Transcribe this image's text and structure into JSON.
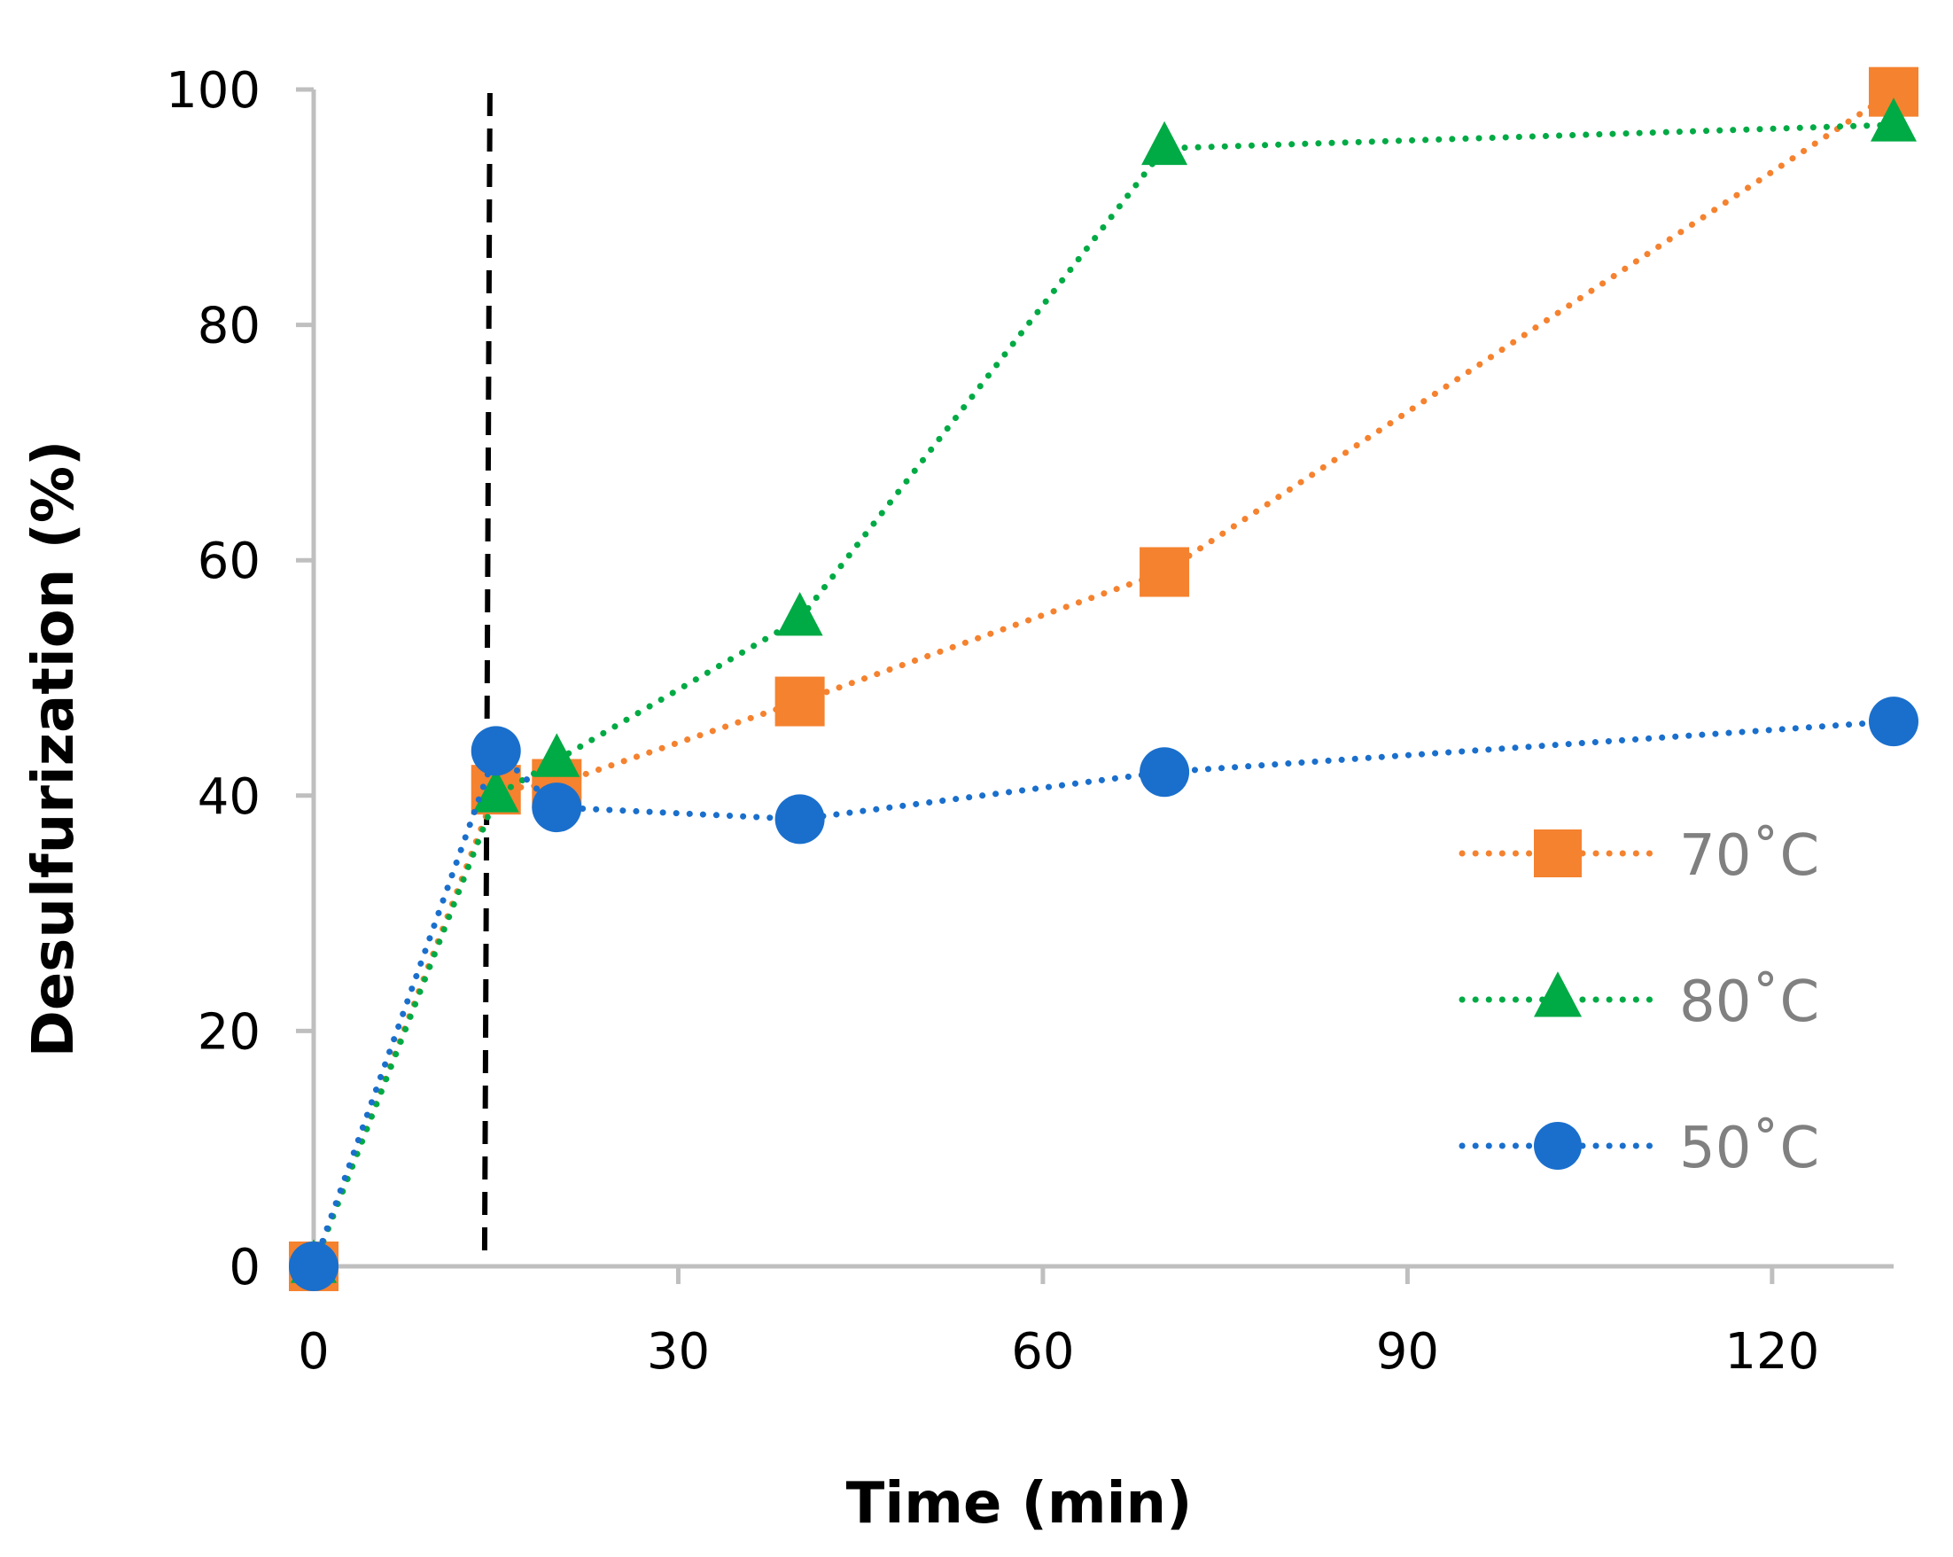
{
  "chart_data": {
    "type": "line",
    "xlabel": "Time (min)",
    "ylabel": "Desulfurization (%)",
    "xlim": [
      0,
      130
    ],
    "ylim": [
      0,
      100
    ],
    "xticks": [
      0,
      30,
      60,
      90,
      120
    ],
    "yticks": [
      0,
      20,
      40,
      60,
      80,
      100
    ],
    "grid": false,
    "legend_position": "bottom-right",
    "reference_line": {
      "x": 14.5,
      "style": "dashed",
      "color": "#000000"
    },
    "series": [
      {
        "name": "70˚C",
        "marker": "square",
        "color": "#F5822F",
        "x": [
          0,
          15,
          20,
          40,
          70,
          130
        ],
        "y": [
          0,
          40.5,
          41,
          48,
          59,
          99.8
        ]
      },
      {
        "name": "80˚C",
        "marker": "triangle",
        "color": "#00AA44",
        "x": [
          0,
          15,
          20,
          40,
          70,
          130
        ],
        "y": [
          0,
          40,
          43,
          55,
          95,
          97
        ]
      },
      {
        "name": "50˚C",
        "marker": "circle",
        "color": "#1A6FCC",
        "x": [
          0,
          15,
          20,
          40,
          70,
          130
        ],
        "y": [
          0,
          43.8,
          39,
          38,
          42,
          46.3
        ]
      }
    ]
  }
}
